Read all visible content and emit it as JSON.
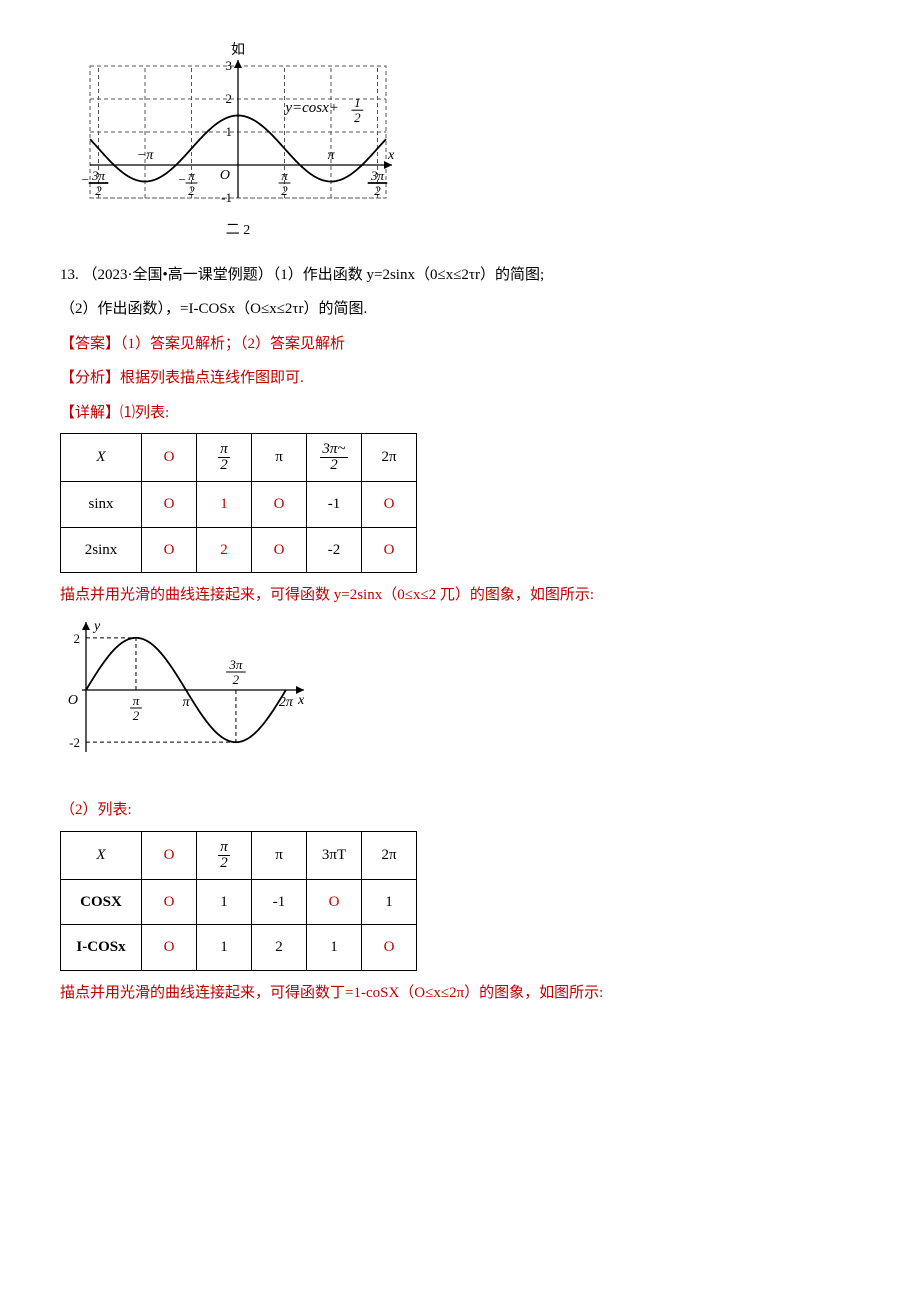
{
  "chart1": {
    "type": "line",
    "title_above": "如",
    "title_below": "二 2",
    "eq_label": "y=cosx+",
    "eq_frac_n": "1",
    "eq_frac_d": "2",
    "axis_font": 14,
    "colors": {
      "bg": "#ffffff",
      "grid": "#555555",
      "axis": "#000000",
      "curve": "#000000",
      "text": "#000000"
    },
    "x_range": [
      -5.0,
      5.0
    ],
    "y_range": [
      -1.0,
      3.0
    ],
    "y_ticks": [
      {
        "v": 3,
        "label": "3"
      },
      {
        "v": 2,
        "label": "2"
      },
      {
        "v": 1,
        "label": "1"
      },
      {
        "v": -1,
        "label": "-1"
      }
    ],
    "x_ticks": [
      {
        "v": -4.712,
        "frac_n": "3π",
        "frac_d": "2",
        "neg": true,
        "underline": true
      },
      {
        "v": -3.1416,
        "label": "−π"
      },
      {
        "v": -1.5708,
        "frac_n": "π",
        "frac_d": "2",
        "neg": true
      },
      {
        "v": 1.5708,
        "frac_n": "π",
        "frac_d": "2"
      },
      {
        "v": 3.1416,
        "label": "π"
      },
      {
        "v": 4.712,
        "frac_n": "3π",
        "frac_d": "2",
        "underline": true
      }
    ],
    "origin_label": "O",
    "x_axis_label": "x",
    "grid_hlines": [
      -1,
      1,
      2,
      3
    ],
    "grid_vlines": [
      -4.712,
      -3.1416,
      -1.5708,
      1.5708,
      3.1416,
      4.712
    ]
  },
  "q13": {
    "prefix": "13. （2023·全国•高一课堂例题）（1）作出函数 y=2sinx（0≤x≤2τr）的简图;",
    "second": "（2）作出函数），=I-COSx（O≤x≤2τr）的简图."
  },
  "answer_line": "【答案】（1）答案见解析；（2）答案见解析",
  "analysis_line": "【分析】根据列表描点连线作图即可.",
  "detail_label": "【详解】",
  "detail_sub1": "⑴列表:",
  "table1": {
    "header": [
      "X",
      "O",
      "π\n2",
      "π",
      "3π~\n2",
      "2π"
    ],
    "rows": [
      {
        "label": "sinx",
        "cells": [
          "O",
          "1",
          "O",
          "-1",
          "O"
        ],
        "red": [
          0,
          1,
          2,
          4
        ]
      },
      {
        "label": "2sinx",
        "cells": [
          "O",
          "2",
          "O",
          "-2",
          "O"
        ],
        "red": [
          0,
          1,
          2,
          4
        ]
      }
    ]
  },
  "caption1": "描点并用光滑的曲线连接起来，可得函数 y=2sinx（0≤x≤2 兀）的图象，如图所示:",
  "chart2": {
    "type": "line",
    "colors": {
      "bg": "#ffffff",
      "axis": "#000000",
      "curve": "#000000",
      "dash": "#000000",
      "text": "#000000"
    },
    "x_range": [
      0,
      6.6
    ],
    "y_range": [
      -2.3,
      2.3
    ],
    "y_ticks": [
      {
        "v": 2,
        "label": "2"
      },
      {
        "v": -2,
        "label": "-2"
      }
    ],
    "x_ticks": [
      {
        "v": 1.5708,
        "frac_n": "π",
        "frac_d": "2"
      },
      {
        "v": 3.1416,
        "label": "π"
      },
      {
        "v": 4.712,
        "frac_n": "3π",
        "frac_d": "2",
        "above": true
      },
      {
        "v": 6.2832,
        "label": "2π"
      }
    ],
    "origin_label": "O",
    "y_axis_label": "y",
    "x_axis_label": "x"
  },
  "sub2_label": "（2）列表:",
  "table2": {
    "header": [
      "X",
      "O",
      "π\n2",
      "π",
      "3πT",
      "2π"
    ],
    "rows": [
      {
        "label": "COSX",
        "cells": [
          "O",
          "1",
          "-1",
          "O",
          "1"
        ],
        "red": [
          0,
          3
        ],
        "bold": true
      },
      {
        "label": "I-COSx",
        "cells": [
          "O",
          "1",
          "2",
          "1",
          "O"
        ],
        "red": [
          0,
          4
        ],
        "bold": true
      }
    ]
  },
  "caption2": "描点并用光滑的曲线连接起来，可得函数丁=1-coSX（O≤x≤2π）的图象，如图所示:"
}
